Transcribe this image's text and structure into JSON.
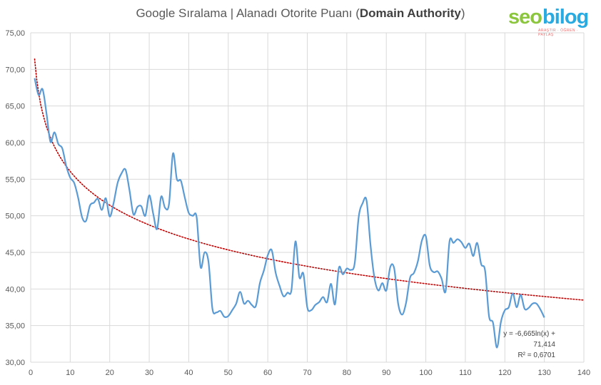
{
  "title": {
    "prefix": "Google Sıralama | Alanadı Otorite Puanı (",
    "bold": "Domain Authority",
    "suffix": ")"
  },
  "logo": {
    "part1": "seo",
    "part2": "bilog",
    "tagline": "ARAŞTIR · ÖĞREN · PAYLAŞ"
  },
  "trendline": {
    "equation": "y = -6,665ln(x) + 71,414",
    "r_squared": "R² = 0,6701"
  },
  "colors": {
    "series": "#5b9bd5",
    "trend": "#c00000",
    "grid": "#d9d9d9",
    "text": "#595959"
  },
  "chart_data": {
    "type": "line",
    "title": "Google Sıralama | Alanadı Otorite Puanı (Domain Authority)",
    "xlabel": "",
    "ylabel": "",
    "xlim": [
      0,
      140
    ],
    "ylim": [
      30,
      75
    ],
    "xticks": [
      "0",
      "10",
      "20",
      "30",
      "40",
      "50",
      "60",
      "70",
      "80",
      "90",
      "100",
      "110",
      "120",
      "130",
      "140"
    ],
    "yticks": [
      "30,00",
      "35,00",
      "40,00",
      "45,00",
      "50,00",
      "55,00",
      "60,00",
      "65,00",
      "70,00",
      "75,00"
    ],
    "grid": true,
    "legend": "none",
    "smoothed": true,
    "series": [
      {
        "x": [
          1,
          2,
          3,
          4,
          5,
          6,
          7,
          8,
          9,
          10,
          11,
          12,
          13,
          14,
          15,
          16,
          17,
          18,
          19,
          20,
          21,
          22,
          23,
          24,
          25,
          26,
          27,
          28,
          29,
          30,
          31,
          32,
          33,
          34,
          35,
          36,
          37,
          38,
          39,
          40,
          41,
          42,
          43,
          44,
          45,
          46,
          47,
          48,
          49,
          50,
          51,
          52,
          53,
          54,
          55,
          56,
          57,
          58,
          59,
          60,
          61,
          62,
          63,
          64,
          65,
          66,
          67,
          68,
          69,
          70,
          71,
          72,
          73,
          74,
          75,
          76,
          77,
          78,
          79,
          80,
          81,
          82,
          83,
          84,
          85,
          86,
          87,
          88,
          89,
          90,
          91,
          92,
          93,
          94,
          95,
          96,
          97,
          98,
          99,
          100,
          101,
          102,
          103,
          104,
          105,
          106,
          107,
          108,
          109,
          110,
          111,
          112,
          113,
          114,
          115,
          116,
          117,
          118,
          119,
          120,
          121,
          122,
          123,
          124,
          125,
          126,
          127,
          128,
          129,
          130
        ],
        "y": [
          68.8,
          66.5,
          67.3,
          64.0,
          60.1,
          61.4,
          59.8,
          59.2,
          56.8,
          55.2,
          54.5,
          52.5,
          49.8,
          49.3,
          51.4,
          51.8,
          52.3,
          50.8,
          52.4,
          49.9,
          51.8,
          54.5,
          55.8,
          56.3,
          53.5,
          50.2,
          51.2,
          51.3,
          50.0,
          52.8,
          50.3,
          48.2,
          52.6,
          51.1,
          51.6,
          58.5,
          55.0,
          54.8,
          52.5,
          50.4,
          50.0,
          49.8,
          43.0,
          45.0,
          43.7,
          37.3,
          36.8,
          37.0,
          36.2,
          36.3,
          37.1,
          38.0,
          39.6,
          38.0,
          38.4,
          37.8,
          37.7,
          40.8,
          42.5,
          44.6,
          45.3,
          42.2,
          40.4,
          39.0,
          39.5,
          39.9,
          46.5,
          41.6,
          42.1,
          37.5,
          37.1,
          37.8,
          38.2,
          38.9,
          38.2,
          40.7,
          37.9,
          42.9,
          42.0,
          42.8,
          42.6,
          43.5,
          49.8,
          51.7,
          52.1,
          46.0,
          41.5,
          39.8,
          40.8,
          39.8,
          43.0,
          42.8,
          38.0,
          36.5,
          38.1,
          41.5,
          42.2,
          43.8,
          46.6,
          47.2,
          43.2,
          42.3,
          42.4,
          41.4,
          39.7,
          46.5,
          46.3,
          46.8,
          46.4,
          45.6,
          46.2,
          44.5,
          46.3,
          43.4,
          42.5,
          36.3,
          35.4,
          32.0,
          35.5,
          37.1,
          37.5,
          39.4,
          37.5,
          39.2,
          37.3,
          37.4,
          38.0,
          38.0,
          37.2,
          36.1
        ]
      }
    ],
    "trend": {
      "type": "logarithmic",
      "a": -6.665,
      "b": 71.414,
      "r2": 0.6701
    }
  }
}
